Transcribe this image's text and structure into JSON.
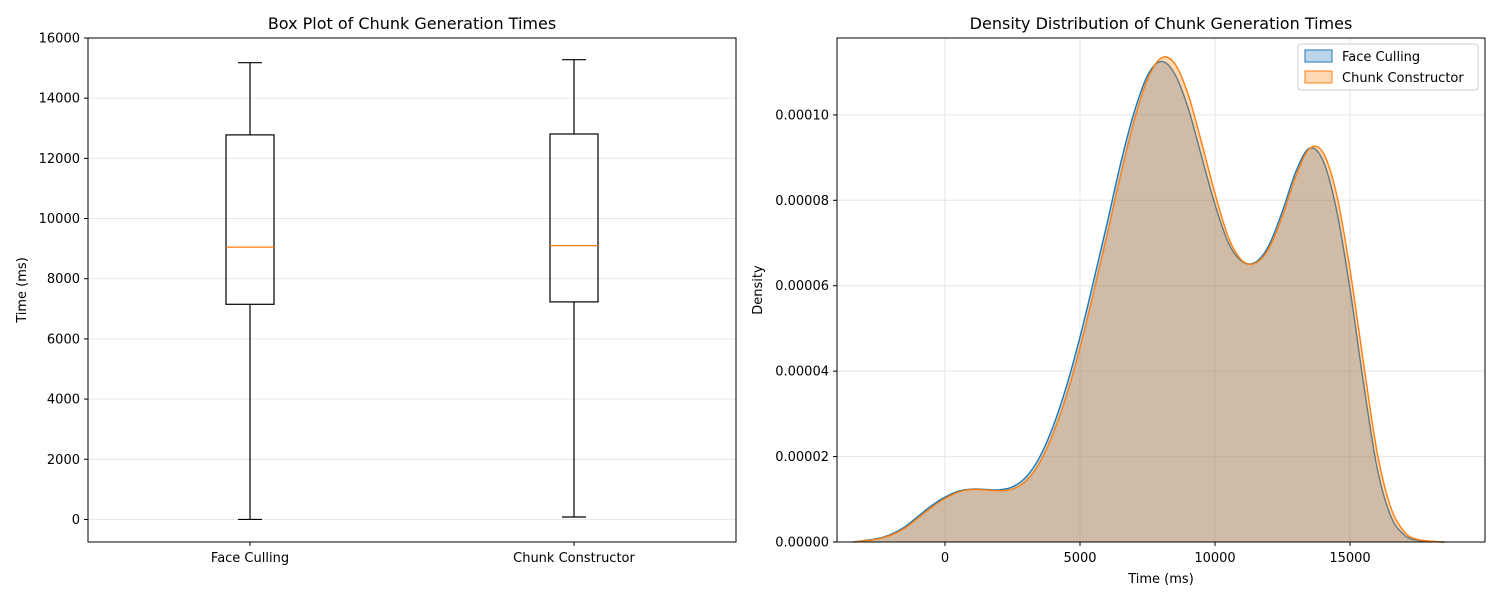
{
  "colors": {
    "face_culling": "#1f77b4",
    "chunk_constructor": "#ff7f0e",
    "median": "#ff7f0e",
    "grid": "#e6e6e6"
  },
  "chart_data": [
    {
      "type": "box",
      "title": "Box Plot of Chunk Generation Times",
      "xlabel": "",
      "ylabel": "Time (ms)",
      "categories": [
        "Face Culling",
        "Chunk Constructor"
      ],
      "ylim": [
        -750,
        16000
      ],
      "yticks": [
        0,
        2000,
        4000,
        6000,
        8000,
        10000,
        12000,
        14000,
        16000
      ],
      "ytick_labels": [
        "0",
        "2000",
        "4000",
        "6000",
        "8000",
        "10000",
        "12000",
        "14000",
        "16000"
      ],
      "grid": true,
      "boxes": [
        {
          "name": "Face Culling",
          "min": 0,
          "q1": 7150,
          "median": 9050,
          "q3": 12780,
          "max": 15180
        },
        {
          "name": "Chunk Constructor",
          "min": 80,
          "q1": 7230,
          "median": 9100,
          "q3": 12810,
          "max": 15280
        }
      ]
    },
    {
      "type": "area",
      "title": "Density Distribution of Chunk Generation Times",
      "xlabel": "Time (ms)",
      "ylabel": "Density",
      "xlim": [
        -4000,
        20000
      ],
      "ylim": [
        0,
        0.000118
      ],
      "xticks": [
        0,
        5000,
        10000,
        15000
      ],
      "xtick_labels": [
        "0",
        "5000",
        "10000",
        "15000"
      ],
      "yticks": [
        0,
        2e-05,
        4e-05,
        6e-05,
        8e-05,
        0.0001
      ],
      "ytick_labels": [
        "0.00000",
        "0.00002",
        "0.00004",
        "0.00006",
        "0.00008",
        "0.00010"
      ],
      "grid": true,
      "legend_position": "top-right",
      "series": [
        {
          "name": "Face Culling",
          "color": "#1f77b4",
          "x": [
            -3400,
            -2500,
            -2000,
            -1500,
            -1000,
            -500,
            0,
            500,
            1000,
            1500,
            2000,
            2500,
            3000,
            3500,
            4000,
            4500,
            5000,
            5500,
            6000,
            6500,
            7000,
            7500,
            8000,
            8500,
            9000,
            9500,
            10000,
            10500,
            11000,
            11500,
            12000,
            12500,
            13000,
            13500,
            14000,
            14500,
            15000,
            15500,
            16000,
            16500,
            17000,
            17500,
            18500
          ],
          "y": [
            0,
            8e-07,
            1.8e-06,
            3.5e-06,
            6e-06,
            8.5e-06,
            1.05e-05,
            1.19e-05,
            1.24e-05,
            1.23e-05,
            1.22e-05,
            1.29e-05,
            1.52e-05,
            1.98e-05,
            2.7e-05,
            3.65e-05,
            4.8e-05,
            6.1e-05,
            7.45e-05,
            8.85e-05,
            0.0001005,
            0.0001092,
            0.0001125,
            0.0001097,
            0.0001017,
            9.03e-05,
            7.9e-05,
            7e-05,
            6.57e-05,
            6.55e-05,
            6.95e-05,
            7.75e-05,
            8.68e-05,
            9.22e-05,
            8.93e-05,
            7.78e-05,
            5.92e-05,
            3.72e-05,
            1.75e-05,
            6.2e-06,
            1.7e-06,
            4e-07,
            0
          ]
        },
        {
          "name": "Chunk Constructor",
          "color": "#ff7f0e",
          "x": [
            -3400,
            -2500,
            -2000,
            -1500,
            -1000,
            -500,
            0,
            500,
            1000,
            1500,
            2000,
            2500,
            3000,
            3500,
            4000,
            4500,
            5000,
            5500,
            6000,
            6500,
            7000,
            7500,
            8000,
            8500,
            9000,
            9500,
            10000,
            10500,
            11000,
            11500,
            12000,
            12500,
            13000,
            13500,
            14000,
            14500,
            15000,
            15500,
            16000,
            16500,
            17000,
            17500,
            18500
          ],
          "y": [
            0,
            7e-07,
            1.6e-06,
            3.2e-06,
            5.6e-06,
            8.1e-06,
            1.02e-05,
            1.17e-05,
            1.23e-05,
            1.22e-05,
            1.2e-05,
            1.24e-05,
            1.43e-05,
            1.85e-05,
            2.53e-05,
            3.43e-05,
            4.55e-05,
            5.83e-05,
            7.18e-05,
            8.58e-05,
            9.85e-05,
            0.0001083,
            0.0001133,
            0.0001121,
            0.0001049,
            9.36e-05,
            8.16e-05,
            7.13e-05,
            6.59e-05,
            6.53e-05,
            6.88e-05,
            7.63e-05,
            8.57e-05,
            9.21e-05,
            9.12e-05,
            8.15e-05,
            6.38e-05,
            4.2e-05,
            2.12e-05,
            8.3e-06,
            2.5e-06,
            6e-07,
            0
          ]
        }
      ]
    }
  ]
}
